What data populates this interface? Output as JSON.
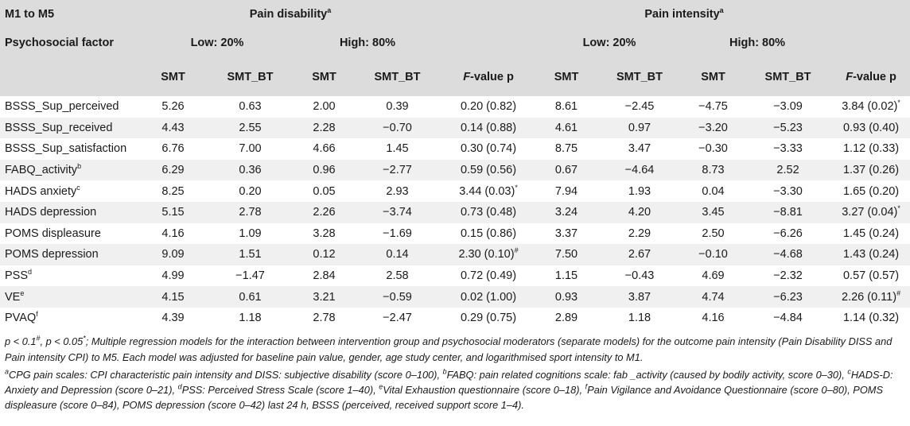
{
  "header": {
    "corner_label": "M1 to M5",
    "row_label": "Psychosocial factor",
    "group1_title": "Pain disability",
    "group1_sup": "a",
    "group2_title": "Pain intensity",
    "group2_sup": "a",
    "low_label": "Low: 20%",
    "high_label": "High: 80%",
    "col_smt": "SMT",
    "col_smt_bt": "SMT_BT",
    "fvalue_f": "F",
    "fvalue_rest": "-value p"
  },
  "rows": [
    {
      "factor": "BSSS_Sup_perceived",
      "sup": "",
      "d_low_smt": "5.26",
      "d_low_bt": "0.63",
      "d_high_smt": "2.00",
      "d_high_bt": "0.39",
      "d_f": "0.20 (0.82)",
      "d_f_sup": "",
      "i_low_smt": "8.61",
      "i_low_bt": "−2.45",
      "i_high_smt": "−4.75",
      "i_high_bt": "−3.09",
      "i_f": "3.84 (0.02)",
      "i_f_sup": "*"
    },
    {
      "factor": "BSSS_Sup_received",
      "sup": "",
      "d_low_smt": "4.43",
      "d_low_bt": "2.55",
      "d_high_smt": "2.28",
      "d_high_bt": "−0.70",
      "d_f": "0.14 (0.88)",
      "d_f_sup": "",
      "i_low_smt": "4.61",
      "i_low_bt": "0.97",
      "i_high_smt": "−3.20",
      "i_high_bt": "−5.23",
      "i_f": "0.93 (0.40)",
      "i_f_sup": ""
    },
    {
      "factor": "BSSS_Sup_satisfaction",
      "sup": "",
      "d_low_smt": "6.76",
      "d_low_bt": "7.00",
      "d_high_smt": "4.66",
      "d_high_bt": "1.45",
      "d_f": "0.30 (0.74)",
      "d_f_sup": "",
      "i_low_smt": "8.75",
      "i_low_bt": "3.47",
      "i_high_smt": "−0.30",
      "i_high_bt": "−3.33",
      "i_f": "1.12 (0.33)",
      "i_f_sup": ""
    },
    {
      "factor": "FABQ_activity",
      "sup": "b",
      "d_low_smt": "6.29",
      "d_low_bt": "0.36",
      "d_high_smt": "0.96",
      "d_high_bt": "−2.77",
      "d_f": "0.59 (0.56)",
      "d_f_sup": "",
      "i_low_smt": "0.67",
      "i_low_bt": "−4.64",
      "i_high_smt": "8.73",
      "i_high_bt": "2.52",
      "i_f": "1.37 (0.26)",
      "i_f_sup": ""
    },
    {
      "factor": "HADS anxiety",
      "sup": "c",
      "d_low_smt": "8.25",
      "d_low_bt": "0.20",
      "d_high_smt": "0.05",
      "d_high_bt": "2.93",
      "d_f": "3.44 (0.03)",
      "d_f_sup": "*",
      "i_low_smt": "7.94",
      "i_low_bt": "1.93",
      "i_high_smt": "0.04",
      "i_high_bt": "−3.30",
      "i_f": "1.65 (0.20)",
      "i_f_sup": ""
    },
    {
      "factor": "HADS depression",
      "sup": "",
      "d_low_smt": "5.15",
      "d_low_bt": "2.78",
      "d_high_smt": "2.26",
      "d_high_bt": "−3.74",
      "d_f": "0.73 (0.48)",
      "d_f_sup": "",
      "i_low_smt": "3.24",
      "i_low_bt": "4.20",
      "i_high_smt": "3.45",
      "i_high_bt": "−8.81",
      "i_f": "3.27 (0.04)",
      "i_f_sup": "*"
    },
    {
      "factor": "POMS displeasure",
      "sup": "",
      "d_low_smt": "4.16",
      "d_low_bt": "1.09",
      "d_high_smt": "3.28",
      "d_high_bt": "−1.69",
      "d_f": "0.15 (0.86)",
      "d_f_sup": "",
      "i_low_smt": "3.37",
      "i_low_bt": "2.29",
      "i_high_smt": "2.50",
      "i_high_bt": "−6.26",
      "i_f": "1.45 (0.24)",
      "i_f_sup": ""
    },
    {
      "factor": "POMS depression",
      "sup": "",
      "d_low_smt": "9.09",
      "d_low_bt": "1.51",
      "d_high_smt": "0.12",
      "d_high_bt": "0.14",
      "d_f": "2.30 (0.10)",
      "d_f_sup": "#",
      "i_low_smt": "7.50",
      "i_low_bt": "2.67",
      "i_high_smt": "−0.10",
      "i_high_bt": "−4.68",
      "i_f": "1.43 (0.24)",
      "i_f_sup": ""
    },
    {
      "factor": "PSS",
      "sup": "d",
      "d_low_smt": "4.99",
      "d_low_bt": "−1.47",
      "d_high_smt": "2.84",
      "d_high_bt": "2.58",
      "d_f": "0.72 (0.49)",
      "d_f_sup": "",
      "i_low_smt": "1.15",
      "i_low_bt": "−0.43",
      "i_high_smt": "4.69",
      "i_high_bt": "−2.32",
      "i_f": "0.57 (0.57)",
      "i_f_sup": ""
    },
    {
      "factor": "VE",
      "sup": "e",
      "d_low_smt": "4.15",
      "d_low_bt": "0.61",
      "d_high_smt": "3.21",
      "d_high_bt": "−0.59",
      "d_f": "0.02 (1.00)",
      "d_f_sup": "",
      "i_low_smt": "0.93",
      "i_low_bt": "3.87",
      "i_high_smt": "4.74",
      "i_high_bt": "−6.23",
      "i_f": "2.26 (0.11)",
      "i_f_sup": "#"
    },
    {
      "factor": "PVAQ",
      "sup": "f",
      "d_low_smt": "4.39",
      "d_low_bt": "1.18",
      "d_high_smt": "2.78",
      "d_high_bt": "−2.47",
      "d_f": "0.29 (0.75)",
      "d_f_sup": "",
      "i_low_smt": "2.89",
      "i_low_bt": "1.18",
      "i_high_smt": "4.16",
      "i_high_bt": "−4.84",
      "i_f": "1.14 (0.32)",
      "i_f_sup": ""
    }
  ],
  "notes": {
    "sig_line_1": "p < 0.1",
    "sig_sup_1": "#",
    "sig_line_2": ", p < 0.05",
    "sig_sup_2": "*",
    "sig_rest": "; Multiple regression models for the interaction between intervention group and psychosocial moderators (separate models) for the outcome pain intensity (Pain Disability DISS and Pain intensity CPI) to M5. Each model was adjusted for baseline pain value, gender, age study center, and logarithmised sport intensity to M1.",
    "fn_a_sup": "a",
    "fn_a": "CPG pain scales: CPI characteristic pain intensity and DISS: subjective disability (score 0–100), ",
    "fn_b_sup": "b",
    "fn_b": "FABQ: pain related cognitions scale: fab _activity (caused by bodily activity, score 0–30),",
    "fn_c_sup": "c",
    "fn_c": "HADS-D: Anxiety and Depression (score 0–21), ",
    "fn_d_sup": "d",
    "fn_d": "PSS: Perceived Stress Scale (score 1–40), ",
    "fn_e_sup": "e",
    "fn_e": "Vital Exhaustion questionnaire (score 0–18), ",
    "fn_f_sup": "f",
    "fn_f": "Pain Vigilance and Avoidance Questionnaire",
    "fn_tail": "(score 0–80), POMS displeasure (score 0–84), POMS depression (score 0–42) last 24 h, BSSS (perceived, received support score 1–4)."
  }
}
